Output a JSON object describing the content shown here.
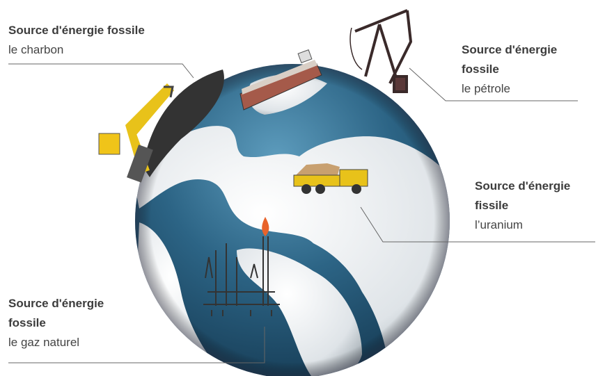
{
  "labels": [
    {
      "title": "Source d'énergie fossile",
      "subtitle": "le charbon"
    },
    {
      "title": "Source d'énergie fossile",
      "subtitle": "le pétrole"
    },
    {
      "title": "Source d'énergie fissile",
      "subtitle": "l’uranium"
    },
    {
      "title": "Source d'énergie fossile",
      "subtitle": "le gaz naturel"
    }
  ]
}
